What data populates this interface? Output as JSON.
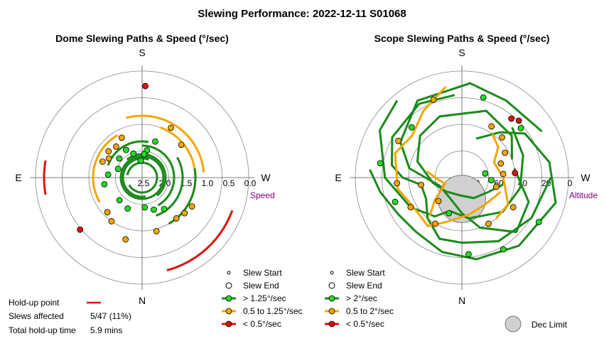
{
  "suptitle": "Slewing Performance: 2022-12-11 S01068",
  "colors": {
    "fast": "#1a8a1a",
    "fast_marker": "#22dd22",
    "mid": "#f5a500",
    "slow": "#dd1111",
    "grid": "#888888",
    "limit_fill": "#d0d0d0",
    "unit": "#800080"
  },
  "chart_data": [
    {
      "type": "scatter",
      "title": "Dome Slewing Paths & Speed (°/sec)",
      "compass": {
        "top": "S",
        "bottom": "N",
        "left": "E",
        "right": "W"
      },
      "radial_label": "Speed",
      "radial_ticks": [
        "2.5",
        "2.0",
        "1.5",
        "1.0",
        "0.5",
        "0.0"
      ],
      "rlim": [
        2.5,
        0.0
      ],
      "legend": [
        {
          "label": "Slew Start",
          "kind": "start"
        },
        {
          "label": "Slew End",
          "kind": "end"
        },
        {
          "label": "> 1.25°/sec",
          "kind": "fast"
        },
        {
          "label": "0.5 to 1.25°/sec",
          "kind": "mid"
        },
        {
          "label": "< 0.5°/sec",
          "kind": "slow"
        }
      ],
      "arcs": [
        {
          "cls": "mid",
          "r": 1.05,
          "from": -95,
          "to": -195
        },
        {
          "cls": "mid",
          "r": 1.35,
          "from": 150,
          "to": 60
        },
        {
          "cls": "mid",
          "r": 1.25,
          "from": -50,
          "to": -160
        },
        {
          "cls": "fast",
          "r": 1.25,
          "from": -30,
          "to": -100
        },
        {
          "cls": "fast",
          "r": 1.55,
          "from": -20,
          "to": -120
        },
        {
          "cls": "fast",
          "r": 1.75,
          "from": -30,
          "to": -180
        },
        {
          "cls": "fast",
          "r": 1.95,
          "from": -40,
          "to": -220
        },
        {
          "cls": "fast",
          "r": 2.05,
          "from": -10,
          "to": 200
        },
        {
          "cls": "fast",
          "r": 2.15,
          "from": 60,
          "to": -260
        },
        {
          "cls": "fast",
          "r": 2.0,
          "from": 0,
          "to": 360
        },
        {
          "cls": "fast",
          "r": 1.65,
          "from": 110,
          "to": 190
        },
        {
          "cls": "slow",
          "r": 0.25,
          "from": -70,
          "to": -15
        },
        {
          "cls": "slow",
          "r": 0.2,
          "from": 100,
          "to": 80
        }
      ],
      "points": [
        {
          "cls": "mid",
          "a": 153,
          "r": 1.45
        },
        {
          "cls": "mid",
          "a": 140,
          "r": 1.55
        },
        {
          "cls": "mid",
          "a": 128,
          "r": 1.5
        },
        {
          "cls": "mid",
          "a": 120,
          "r": 1.6
        },
        {
          "cls": "mid",
          "a": 112,
          "r": 1.5
        },
        {
          "cls": "mid",
          "a": -40,
          "r": 1.25
        },
        {
          "cls": "mid",
          "a": -50,
          "r": 1.2
        },
        {
          "cls": "mid",
          "a": -60,
          "r": 1.15
        },
        {
          "cls": "mid",
          "a": -130,
          "r": 1.3
        },
        {
          "cls": "mid",
          "a": -150,
          "r": 1.15
        },
        {
          "cls": "mid",
          "a": 15,
          "r": 1.0
        },
        {
          "cls": "mid",
          "a": -15,
          "r": 1.2
        },
        {
          "cls": "mid",
          "a": 35,
          "r": 1.25
        },
        {
          "cls": "mid",
          "a": 45,
          "r": 1.35
        },
        {
          "cls": "fast",
          "a": 150,
          "r": 1.75
        },
        {
          "cls": "fast",
          "a": 130,
          "r": 1.8
        },
        {
          "cls": "fast",
          "a": 110,
          "r": 1.9
        },
        {
          "cls": "fast",
          "a": 160,
          "r": 1.9
        },
        {
          "cls": "fast",
          "a": -170,
          "r": 1.85
        },
        {
          "cls": "fast",
          "a": -160,
          "r": 1.6
        },
        {
          "cls": "fast",
          "a": -5,
          "r": 1.8
        },
        {
          "cls": "fast",
          "a": -20,
          "r": 1.7
        },
        {
          "cls": "fast",
          "a": -35,
          "r": 1.6
        },
        {
          "cls": "fast",
          "a": 25,
          "r": 1.7
        },
        {
          "cls": "fast",
          "a": 45,
          "r": 1.75
        },
        {
          "cls": "fast",
          "a": 80,
          "r": 1.6
        },
        {
          "cls": "fast",
          "a": 95,
          "r": 1.7
        },
        {
          "cls": "fast",
          "a": 175,
          "r": 2.1
        },
        {
          "cls": "fast",
          "a": -175,
          "r": 1.95
        },
        {
          "cls": "slow",
          "a": 50,
          "r": 0.6
        },
        {
          "cls": "slow",
          "a": -178,
          "r": 0.35
        }
      ]
    },
    {
      "type": "scatter",
      "title": "Scope Slewing Paths & Speed (°/sec)",
      "compass": {
        "top": "S",
        "bottom": "N",
        "left": "E",
        "right": "W"
      },
      "radial_label": "Altitude",
      "radial_ticks": [
        "80",
        "60",
        "40",
        "20",
        "0"
      ],
      "rlim": [
        90,
        0
      ],
      "legend": [
        {
          "label": "Slew Start",
          "kind": "start"
        },
        {
          "label": "Slew End",
          "kind": "end"
        },
        {
          "label": "> 2°/sec",
          "kind": "fast"
        },
        {
          "label": "0.5 to 2°/sec",
          "kind": "mid"
        },
        {
          "label": "< 0.5°/sec",
          "kind": "slow"
        },
        {
          "label": "Dec Limit",
          "kind": "limit"
        }
      ],
      "dec_limit": {
        "a": 180,
        "r": 72,
        "radius_deg": 20
      },
      "paths": [
        {
          "cls": "fast",
          "pts": [
            [
              175,
              20
            ],
            [
              150,
              18
            ],
            [
              120,
              22
            ],
            [
              100,
              30
            ],
            [
              90,
              40
            ],
            [
              80,
              55
            ],
            [
              60,
              55
            ],
            [
              40,
              45
            ],
            [
              20,
              35
            ],
            [
              0,
              35
            ],
            [
              -30,
              28
            ],
            [
              -60,
              22
            ],
            [
              -90,
              15
            ]
          ]
        },
        {
          "cls": "fast",
          "pts": [
            [
              -120,
              12
            ],
            [
              -150,
              15
            ],
            [
              -175,
              10
            ],
            [
              150,
              15
            ],
            [
              120,
              30
            ],
            [
              100,
              45
            ],
            [
              70,
              70
            ],
            [
              30,
              70
            ],
            [
              0,
              60
            ],
            [
              -20,
              45
            ],
            [
              -45,
              25
            ],
            [
              -70,
              30
            ],
            [
              -100,
              45
            ]
          ]
        },
        {
          "cls": "fast",
          "pts": [
            [
              -80,
              55
            ],
            [
              -60,
              65
            ],
            [
              -30,
              70
            ],
            [
              10,
              75
            ],
            [
              50,
              72
            ],
            [
              80,
              65
            ],
            [
              110,
              50
            ],
            [
              135,
              40
            ],
            [
              160,
              35
            ],
            [
              -160,
              30
            ],
            [
              -130,
              35
            ],
            [
              -110,
              45
            ]
          ]
        },
        {
          "cls": "fast",
          "pts": [
            [
              95,
              12
            ],
            [
              80,
              20
            ],
            [
              60,
              28
            ],
            [
              40,
              30
            ],
            [
              15,
              25
            ],
            [
              -10,
              20
            ],
            [
              -40,
              15
            ],
            [
              -75,
              8
            ],
            [
              -100,
              15
            ],
            [
              -125,
              25
            ],
            [
              -140,
              40
            ],
            [
              -160,
              55
            ]
          ]
        },
        {
          "cls": "fast",
          "pts": [
            [
              140,
              5
            ],
            [
              120,
              10
            ],
            [
              90,
              25
            ],
            [
              60,
              40
            ],
            [
              35,
              50
            ],
            [
              20,
              60
            ],
            [
              -10,
              55
            ],
            [
              -50,
              45
            ],
            [
              -80,
              40
            ],
            [
              -110,
              35
            ],
            [
              -135,
              30
            ]
          ]
        },
        {
          "cls": "mid",
          "pts": [
            [
              170,
              12
            ],
            [
              150,
              25
            ],
            [
              130,
              35
            ],
            [
              110,
              30
            ],
            [
              80,
              35
            ],
            [
              60,
              42
            ],
            [
              35,
              40
            ],
            [
              20,
              50
            ],
            [
              -10,
              58
            ],
            [
              -40,
              60
            ],
            [
              -70,
              55
            ]
          ]
        },
        {
          "cls": "mid",
          "pts": [
            [
              -40,
              45
            ],
            [
              -60,
              45
            ],
            [
              -90,
              55
            ],
            [
              -115,
              60
            ],
            [
              -130,
              50
            ],
            [
              -145,
              45
            ]
          ]
        },
        {
          "cls": "mid",
          "pts": [
            [
              100,
              60
            ],
            [
              85,
              70
            ],
            [
              70,
              75
            ],
            [
              50,
              60
            ],
            [
              40,
              48
            ]
          ]
        }
      ],
      "points": [
        {
          "cls": "mid",
          "a": 160,
          "r": 20
        },
        {
          "cls": "mid",
          "a": 120,
          "r": 28
        },
        {
          "cls": "mid",
          "a": 85,
          "r": 35
        },
        {
          "cls": "mid",
          "a": 60,
          "r": 40
        },
        {
          "cls": "mid",
          "a": 30,
          "r": 45
        },
        {
          "cls": "mid",
          "a": -30,
          "r": 45
        },
        {
          "cls": "mid",
          "a": -60,
          "r": 40
        },
        {
          "cls": "mid",
          "a": -95,
          "r": 55
        },
        {
          "cls": "mid",
          "a": -110,
          "r": 55
        },
        {
          "cls": "mid",
          "a": -120,
          "r": 48
        },
        {
          "cls": "mid",
          "a": -135,
          "r": 42
        },
        {
          "cls": "mid",
          "a": -150,
          "r": 40
        },
        {
          "cls": "mid",
          "a": -75,
          "r": 60
        },
        {
          "cls": "mid",
          "a": 45,
          "r": 62
        },
        {
          "cls": "mid",
          "a": 80,
          "r": 55
        },
        {
          "cls": "fast",
          "a": -5,
          "r": 25
        },
        {
          "cls": "fast",
          "a": -30,
          "r": 20
        },
        {
          "cls": "fast",
          "a": -60,
          "r": 15
        },
        {
          "cls": "fast",
          "a": 70,
          "r": 30
        },
        {
          "cls": "fast",
          "a": 100,
          "r": 20
        },
        {
          "cls": "fast",
          "a": 135,
          "r": 30
        },
        {
          "cls": "fast",
          "a": -130,
          "r": 25
        },
        {
          "cls": "fast",
          "a": -165,
          "r": 20
        },
        {
          "cls": "fast",
          "a": -85,
          "r": 65
        },
        {
          "cls": "fast",
          "a": -100,
          "r": 70
        },
        {
          "cls": "fast",
          "a": 20,
          "r": 58
        },
        {
          "cls": "slow",
          "a": -95,
          "r": 45
        },
        {
          "cls": "slow",
          "a": -140,
          "r": 25
        },
        {
          "cls": "slow",
          "a": -135,
          "r": 22
        }
      ]
    }
  ],
  "holdup": {
    "label_point": "Hold-up point",
    "label_affected": "Slews affected",
    "value_affected": "5/47 (11%)",
    "label_time": "Total hold-up time",
    "value_time": "5.9 mins"
  }
}
